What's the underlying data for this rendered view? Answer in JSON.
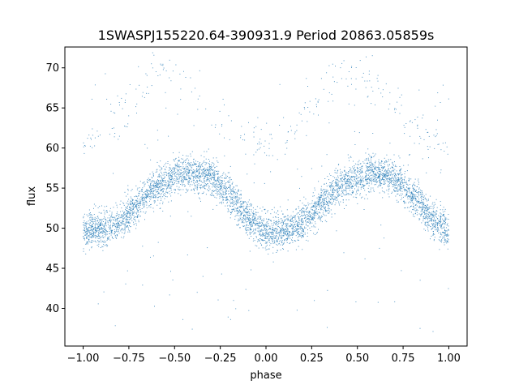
{
  "chart_data": {
    "type": "scatter",
    "title": "1SWASPJ155220.64-390931.9 Period 20863.05859s",
    "xlabel": "phase",
    "ylabel": "flux",
    "xlim": [
      -1.1,
      1.1
    ],
    "ylim": [
      35.3,
      72.6
    ],
    "xticks": [
      -1.0,
      -0.75,
      -0.5,
      -0.25,
      0.0,
      0.25,
      0.5,
      0.75,
      1.0
    ],
    "xtick_labels": [
      "−1.00",
      "−0.75",
      "−0.50",
      "−0.25",
      "0.00",
      "0.25",
      "0.50",
      "0.75",
      "1.00"
    ],
    "yticks": [
      40,
      45,
      50,
      55,
      60,
      65,
      70
    ],
    "ytick_labels": [
      "40",
      "45",
      "50",
      "55",
      "60",
      "65",
      "70"
    ],
    "grid": false,
    "legend": "none",
    "series": [
      {
        "marker_color": "#1f77b4",
        "description_of_shape": "folded light curve, baseline minimum ~49.5 near phase 0 and ±1, maximum ~57 near phase ±0.45..0.6, plus a faint upper branch peaking ~69.5 and sparse outliers 37-71",
        "profile_x": [
          -1.0,
          -0.9,
          -0.8,
          -0.7,
          -0.6,
          -0.5,
          -0.4,
          -0.3,
          -0.2,
          -0.1,
          0.0,
          0.1,
          0.2,
          0.3,
          0.4,
          0.5,
          0.6,
          0.7,
          0.8,
          0.9,
          1.0
        ],
        "profile_y": [
          49.6,
          49.8,
          50.6,
          53.0,
          55.3,
          56.5,
          56.8,
          56.3,
          54.2,
          51.2,
          49.5,
          49.6,
          50.6,
          53.0,
          55.3,
          56.5,
          56.8,
          56.3,
          54.2,
          51.2,
          49.6
        ],
        "upper_branch_x": [
          -1.0,
          -0.9,
          -0.8,
          -0.7,
          -0.6,
          -0.5,
          -0.4,
          -0.3,
          -0.2,
          -0.1,
          0.0,
          0.1,
          0.2,
          0.3,
          0.4,
          0.5,
          0.6,
          0.7,
          0.8,
          0.9,
          1.0
        ],
        "upper_branch_y": [
          60.5,
          61.0,
          63.5,
          67.0,
          69.2,
          69.5,
          68.0,
          65.5,
          63.0,
          61.2,
          60.5,
          61.0,
          63.5,
          67.0,
          69.2,
          69.5,
          68.0,
          65.5,
          63.0,
          61.2,
          60.5
        ],
        "scatter_sigma": 1.1
      }
    ]
  }
}
